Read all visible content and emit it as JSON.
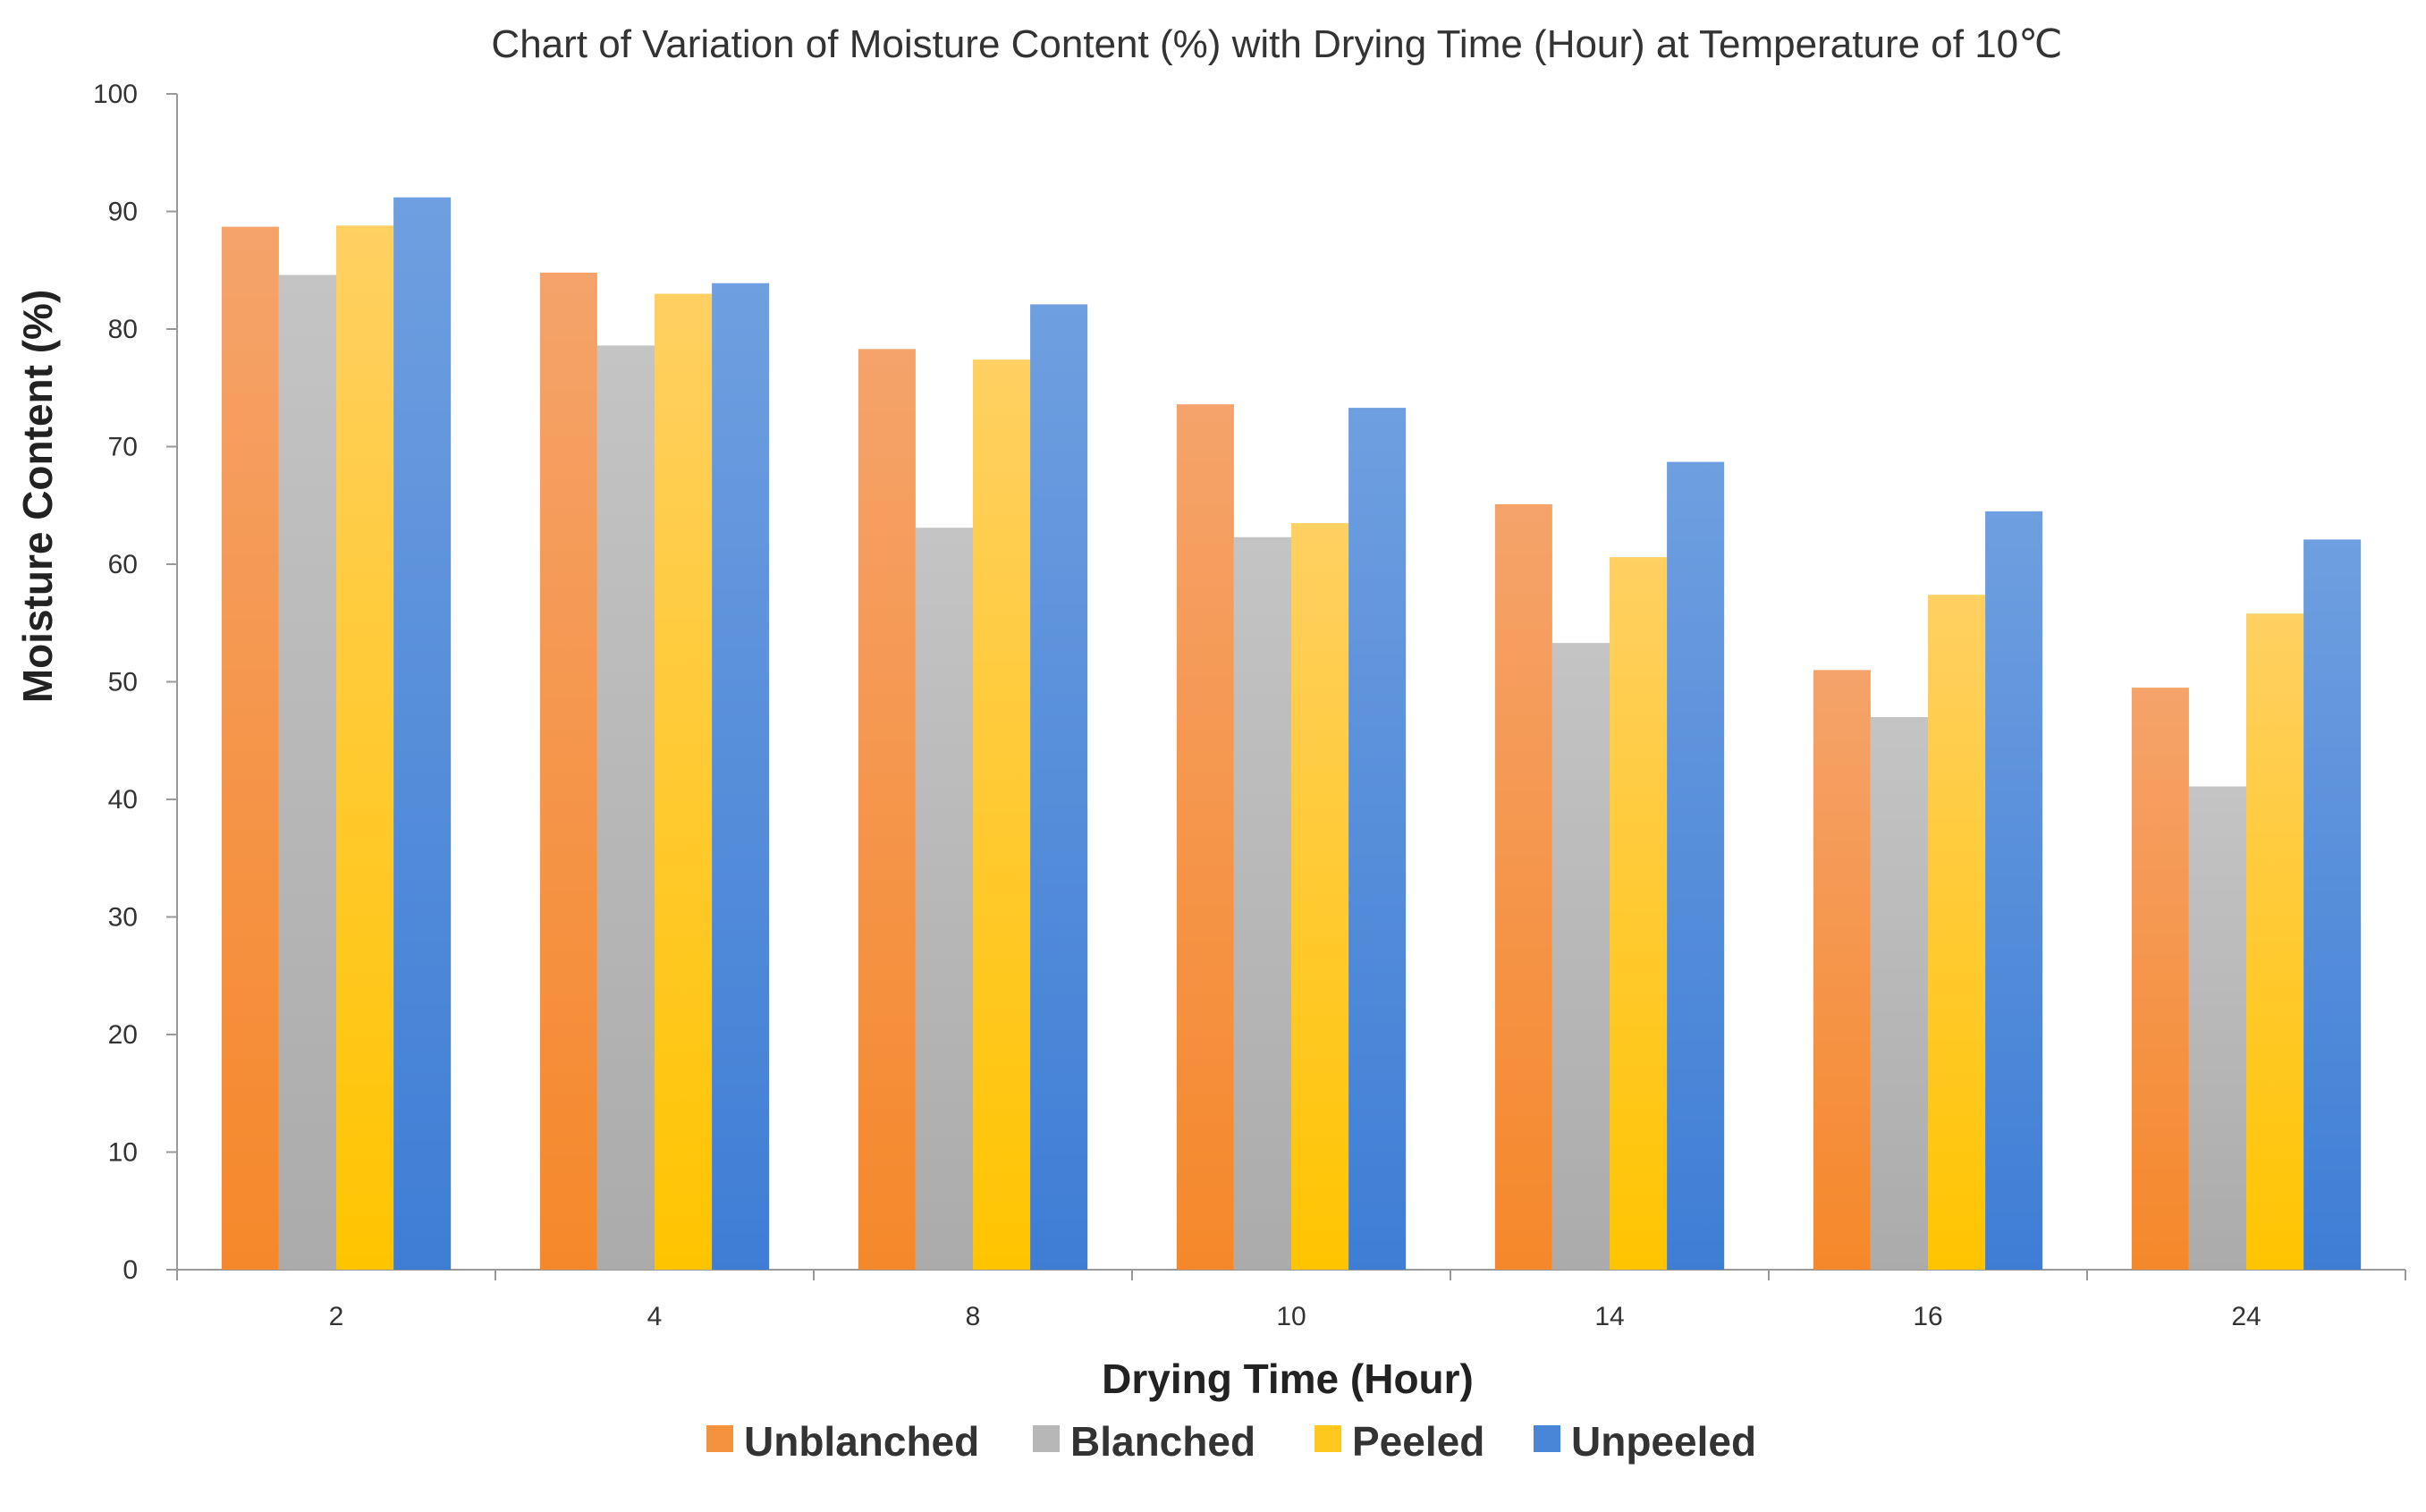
{
  "chart_data": {
    "type": "bar",
    "title": "Chart of Variation of Moisture Content (%) with Drying Time (Hour) at Temperature of 10℃",
    "xlabel": "Drying Time (Hour)",
    "ylabel": "Moisture Content (%)",
    "ylim": [
      0,
      100
    ],
    "yticks": [
      "0",
      "10",
      "20",
      "30",
      "40",
      "50",
      "60",
      "70",
      "80",
      "90",
      "100"
    ],
    "categories": [
      "2",
      "4",
      "8",
      "10",
      "14",
      "16",
      "24"
    ],
    "grid": false,
    "legend_position": "bottom",
    "series": [
      {
        "name": "Unblanched",
        "color": "#F5923E",
        "values": [
          88.7,
          84.8,
          78.3,
          73.6,
          65.1,
          51.0,
          49.5
        ]
      },
      {
        "name": "Blanched",
        "color": "#B7B7B7",
        "values": [
          84.6,
          78.6,
          63.1,
          62.3,
          53.3,
          47.0,
          41.1
        ]
      },
      {
        "name": "Peeled",
        "color": "#FFC81F",
        "values": [
          88.8,
          83.0,
          77.4,
          63.5,
          60.6,
          57.4,
          55.8
        ]
      },
      {
        "name": "Unpeeled",
        "color": "#4A86D8",
        "values": [
          91.2,
          83.9,
          82.1,
          73.3,
          68.7,
          64.5,
          62.1
        ]
      }
    ]
  }
}
